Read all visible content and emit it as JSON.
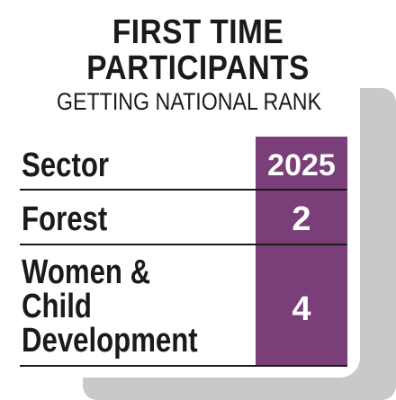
{
  "header": {
    "title_line1": "FIRST TIME",
    "title_line2": "PARTICIPANTS",
    "subtitle": "GETTING NATIONAL RANK"
  },
  "table": {
    "columns": [
      "Sector",
      "2025"
    ],
    "rows": [
      {
        "sector_lines": [
          "Forest"
        ],
        "value": "2"
      },
      {
        "sector_lines": [
          "Women &",
          "Child",
          "Development"
        ],
        "value": "4"
      }
    ]
  },
  "colors": {
    "accent": "#7a3f78",
    "shadow": "#c9c9c9",
    "text": "#1a1a1a"
  }
}
